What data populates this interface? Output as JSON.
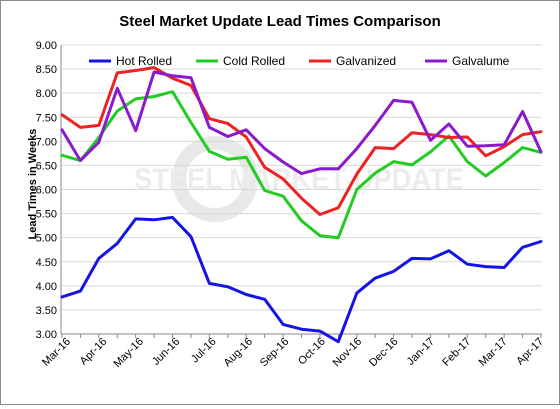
{
  "watermark": "STEEL MARKET UPDATE",
  "chart_data": {
    "type": "line",
    "title": "Steel Market Update Lead Times Comparison",
    "xlabel": "",
    "ylabel": "Lead Times in Weeks",
    "ylim": [
      3.0,
      9.0
    ],
    "yticks": [
      "3.00",
      "3.50",
      "4.00",
      "4.50",
      "5.00",
      "5.50",
      "6.00",
      "6.50",
      "7.00",
      "7.50",
      "8.00",
      "8.50",
      "9.00"
    ],
    "grid": "horizontal",
    "legend_position": "top",
    "x_labels": [
      "Mar-16",
      "Apr-16",
      "May-16",
      "Jun-16",
      "Jul-16",
      "Aug-16",
      "Sep-16",
      "Oct-16",
      "Nov-16",
      "Dec-16",
      "Jan-17",
      "Feb-17",
      "Mar-17",
      "Apr-17"
    ],
    "series": [
      {
        "name": "Hot Rolled",
        "color": "#1414e6",
        "values": [
          3.77,
          3.89,
          4.57,
          4.88,
          5.39,
          5.37,
          5.42,
          5.02,
          4.05,
          3.98,
          3.82,
          3.72,
          3.2,
          3.1,
          3.06,
          2.84,
          3.85,
          4.16,
          4.3,
          4.57,
          4.56,
          4.73,
          4.45,
          4.4,
          4.38,
          4.8,
          4.92
        ]
      },
      {
        "name": "Cold Rolled",
        "color": "#22cc22",
        "values": [
          6.71,
          6.6,
          7.08,
          7.63,
          7.88,
          7.93,
          8.03,
          7.39,
          6.79,
          6.63,
          6.67,
          5.98,
          5.86,
          5.35,
          5.04,
          5.0,
          6.0,
          6.34,
          6.58,
          6.51,
          6.78,
          7.11,
          6.58,
          6.28,
          6.56,
          6.87,
          6.77
        ]
      },
      {
        "name": "Galvanized",
        "color": "#ee2222",
        "values": [
          7.55,
          7.29,
          7.33,
          8.42,
          8.47,
          8.53,
          8.31,
          8.16,
          7.47,
          7.37,
          7.09,
          6.46,
          6.22,
          5.82,
          5.48,
          5.62,
          6.32,
          6.87,
          6.85,
          7.18,
          7.14,
          7.08,
          7.09,
          6.7,
          6.89,
          7.14,
          7.2
        ]
      },
      {
        "name": "Galvalume",
        "color": "#8a1acc",
        "values": [
          7.24,
          6.6,
          6.98,
          8.1,
          7.22,
          8.44,
          8.36,
          8.32,
          7.29,
          7.1,
          7.24,
          6.85,
          6.57,
          6.33,
          6.43,
          6.43,
          6.85,
          7.33,
          7.85,
          7.81,
          7.02,
          7.36,
          6.9,
          6.91,
          6.93,
          7.62,
          6.78
        ]
      }
    ]
  }
}
